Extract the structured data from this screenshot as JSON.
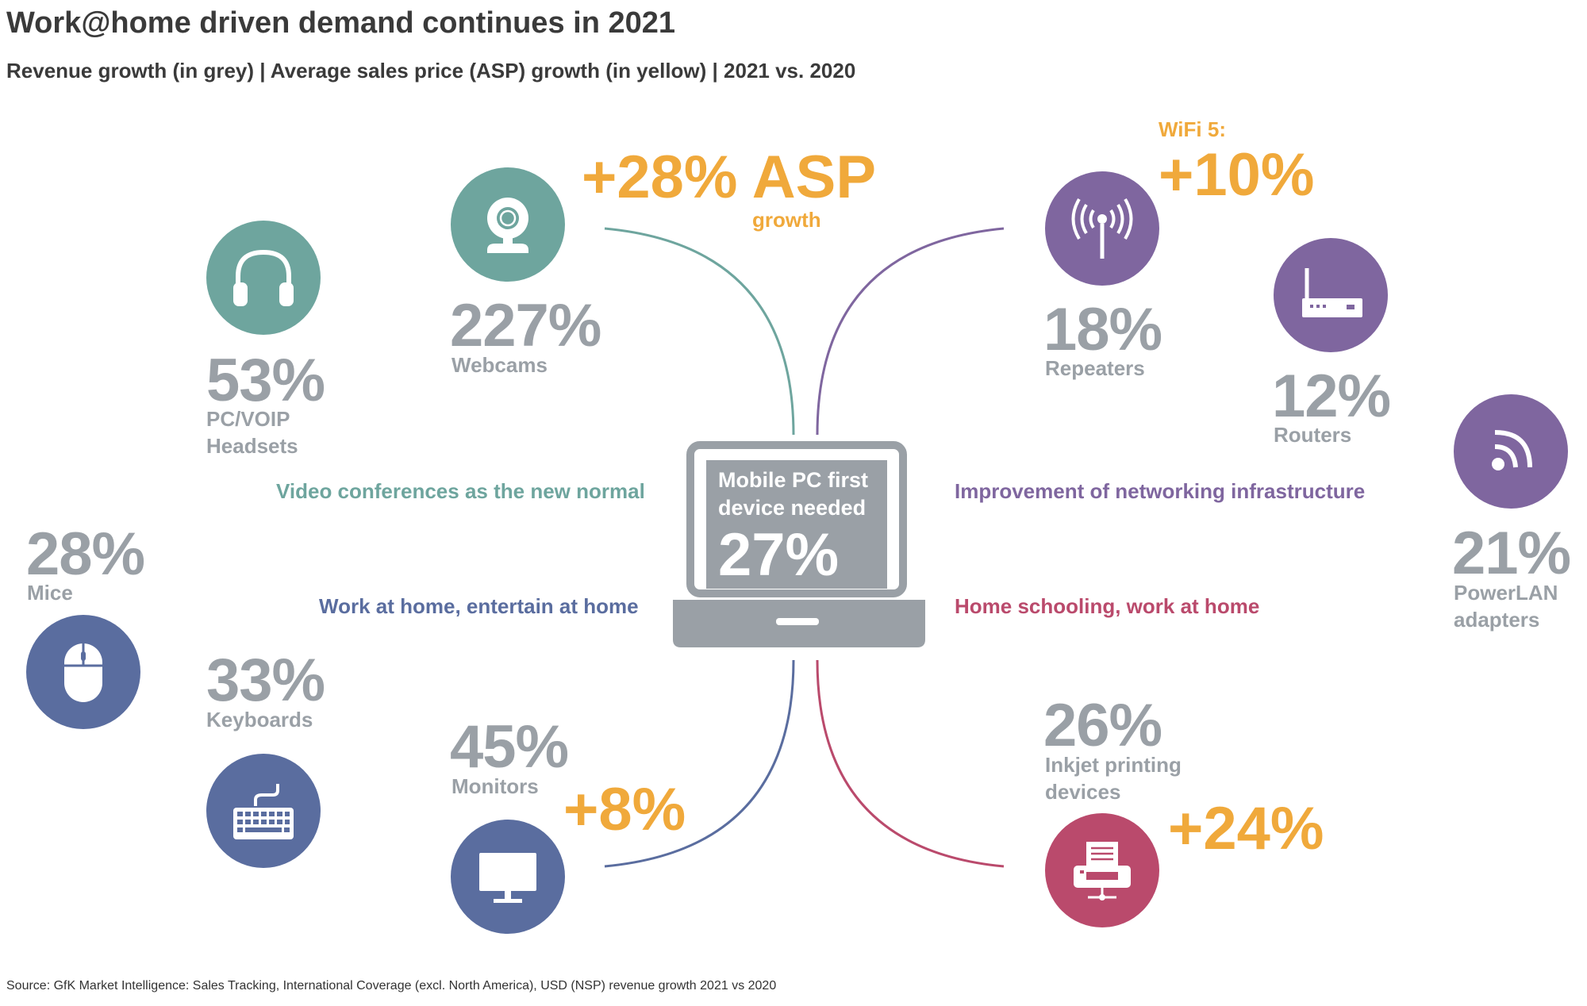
{
  "title": "Work@home driven demand continues in 2021",
  "subtitle": "Revenue growth (in grey) | Average sales price (ASP) growth (in yellow) | 2021 vs. 2020",
  "source": "Source: GfK Market Intelligence: Sales Tracking, International Coverage (excl. North America), USD (NSP) revenue growth 2021 vs 2020",
  "colors": {
    "teal": "#6ea59e",
    "purple": "#7f669f",
    "blue": "#5a6d9f",
    "crimson": "#ba4a6c",
    "grey": "#9aa0a6",
    "orange": "#f0a93b"
  },
  "center": {
    "line1": "Mobile PC first device needed",
    "value": "27%"
  },
  "themes": {
    "video": "Video conferences as the new normal",
    "networking": "Improvement of networking infrastructure",
    "entertain": "Work at home, entertain at home",
    "schooling": "Home schooling, work at home"
  },
  "items": {
    "webcams": {
      "value": "227%",
      "label": "Webcams",
      "asp": "+28% ASP",
      "asp_note": "growth",
      "icon": "webcam-icon"
    },
    "headsets": {
      "value": "53%",
      "label_line1": "PC/VOIP",
      "label_line2": "Headsets",
      "icon": "headset-icon"
    },
    "mice": {
      "value": "28%",
      "label": "Mice",
      "icon": "mouse-icon"
    },
    "keyboards": {
      "value": "33%",
      "label": "Keyboards",
      "icon": "keyboard-icon"
    },
    "monitors": {
      "value": "45%",
      "label": "Monitors",
      "asp": "+8%",
      "icon": "monitor-icon"
    },
    "repeaters": {
      "value": "18%",
      "label": "Repeaters",
      "asp_note": "WiFi 5:",
      "asp": "+10%",
      "icon": "antenna-icon"
    },
    "routers": {
      "value": "12%",
      "label": "Routers",
      "icon": "router-icon"
    },
    "powerlan": {
      "value": "21%",
      "label_line1": "PowerLAN",
      "label_line2": "adapters",
      "icon": "signal-icon"
    },
    "inkjet": {
      "value": "26%",
      "label_line1": "Inkjet printing",
      "label_line2": "devices",
      "asp": "+24%",
      "icon": "printer-icon"
    }
  }
}
